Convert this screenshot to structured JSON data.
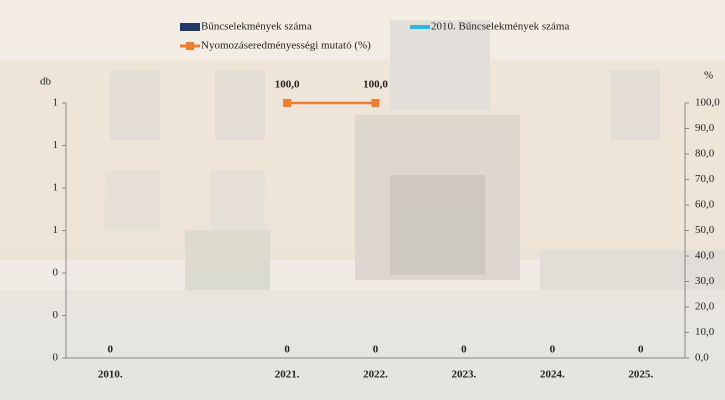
{
  "chart_data": {
    "type": "bar",
    "categories": [
      "2010.",
      null,
      "2021.",
      "2022.",
      "2023.",
      "2024.",
      "2025."
    ],
    "ylabel": "db",
    "y2label": "%",
    "ylim": [
      0,
      1.2
    ],
    "yticks": [
      0,
      {
        "value": 0.2,
        "label": "0"
      },
      {
        "value": 0.4,
        "label": "0"
      },
      {
        "value": 0.6,
        "label": "1"
      },
      {
        "value": 0.8,
        "label": "1"
      },
      {
        "value": 1.0,
        "label": "1"
      },
      {
        "value": 1.2,
        "label": "1"
      }
    ],
    "y2lim": [
      0,
      100
    ],
    "y2ticks": [
      {
        "value": 0,
        "label": "0,0"
      },
      {
        "value": 10,
        "label": "10,0"
      },
      {
        "value": 20,
        "label": "20,0"
      },
      {
        "value": 30,
        "label": "30,0"
      },
      {
        "value": 40,
        "label": "40,0"
      },
      {
        "value": 50,
        "label": "50,0"
      },
      {
        "value": 60,
        "label": "60,0"
      },
      {
        "value": 70,
        "label": "70,0"
      },
      {
        "value": 80,
        "label": "80,0"
      },
      {
        "value": 90,
        "label": "90,0"
      },
      {
        "value": 100,
        "label": "100,0"
      }
    ],
    "series": [
      {
        "name": "Bűncselekmények száma",
        "color": "#1f3864",
        "type": "bar",
        "values": [
          null,
          null,
          0,
          0,
          0,
          0,
          0
        ]
      },
      {
        "name": "2010. Bűncselekmények száma",
        "color": "#2eb4e8",
        "type": "bar",
        "values": [
          0,
          null,
          null,
          null,
          null,
          null,
          null
        ]
      },
      {
        "name": "Nyomozáseredményességi mutató (%)",
        "color": "#ed7d31",
        "type": "line",
        "axis": "y2",
        "values": [
          null,
          null,
          100,
          100,
          null,
          null,
          null
        ],
        "value_labels": [
          null,
          null,
          "100,0",
          "100,0",
          null,
          null,
          null
        ]
      }
    ]
  }
}
